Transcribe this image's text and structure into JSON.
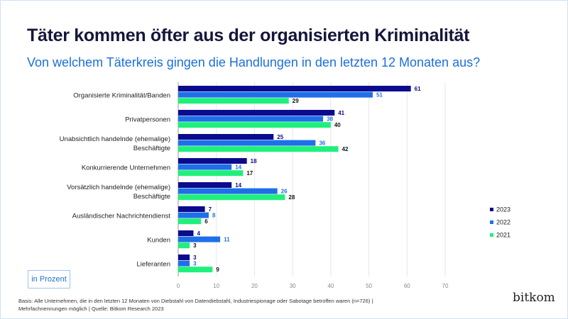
{
  "title": "Täter kommen öfter aus der organisierten Kriminalität",
  "subtitle": "Von welchem Täterkreis gingen die Handlungen in den letzten 12 Monaten aus?",
  "unit_label": "in Prozent",
  "footnote_line1": "Basis: Alle Unternehmen, die in den letzten 12 Monaten von Diebstahl von Datendiebstahl, Industriespionage oder Sabotage betroffen waren (n=726) |",
  "footnote_line2": "Mehrfachnennungen möglich | Quelle: Bitkom Research 2023",
  "logo": "bitkom",
  "chart_data": {
    "type": "bar",
    "orientation": "horizontal",
    "title": "Täter kommen öfter aus der organisierten Kriminalität",
    "xlabel": "",
    "ylabel": "",
    "xlim": [
      0,
      70
    ],
    "xticks": [
      0,
      10,
      20,
      30,
      40,
      50,
      60,
      70
    ],
    "grid": true,
    "legend": "right",
    "categories": [
      [
        "Organisierte Kriminalität/Banden"
      ],
      [
        "Privatpersonen"
      ],
      [
        "Unabsichtlich handelnde (ehemalige)",
        "Beschäftigte"
      ],
      [
        "Konkurrierende Unternehmen"
      ],
      [
        "Vorsätzlich handelnde (ehemalige)",
        "Beschäftigte"
      ],
      [
        "Ausländischer Nachrichtendienst"
      ],
      [
        "Kunden"
      ],
      [
        "Lieferanten"
      ]
    ],
    "series": [
      {
        "name": "2023",
        "color": "#0b0b8e",
        "label_color": "#0b0b8e",
        "values": [
          61,
          41,
          25,
          18,
          14,
          7,
          4,
          3
        ]
      },
      {
        "name": "2022",
        "color": "#1f6fe8",
        "label_color": "#1f6fe8",
        "values": [
          51,
          38,
          36,
          14,
          26,
          8,
          11,
          3
        ]
      },
      {
        "name": "2021",
        "color": "#1ff07c",
        "label_color": "#111111",
        "values": [
          29,
          40,
          42,
          17,
          28,
          6,
          3,
          9
        ]
      }
    ]
  }
}
